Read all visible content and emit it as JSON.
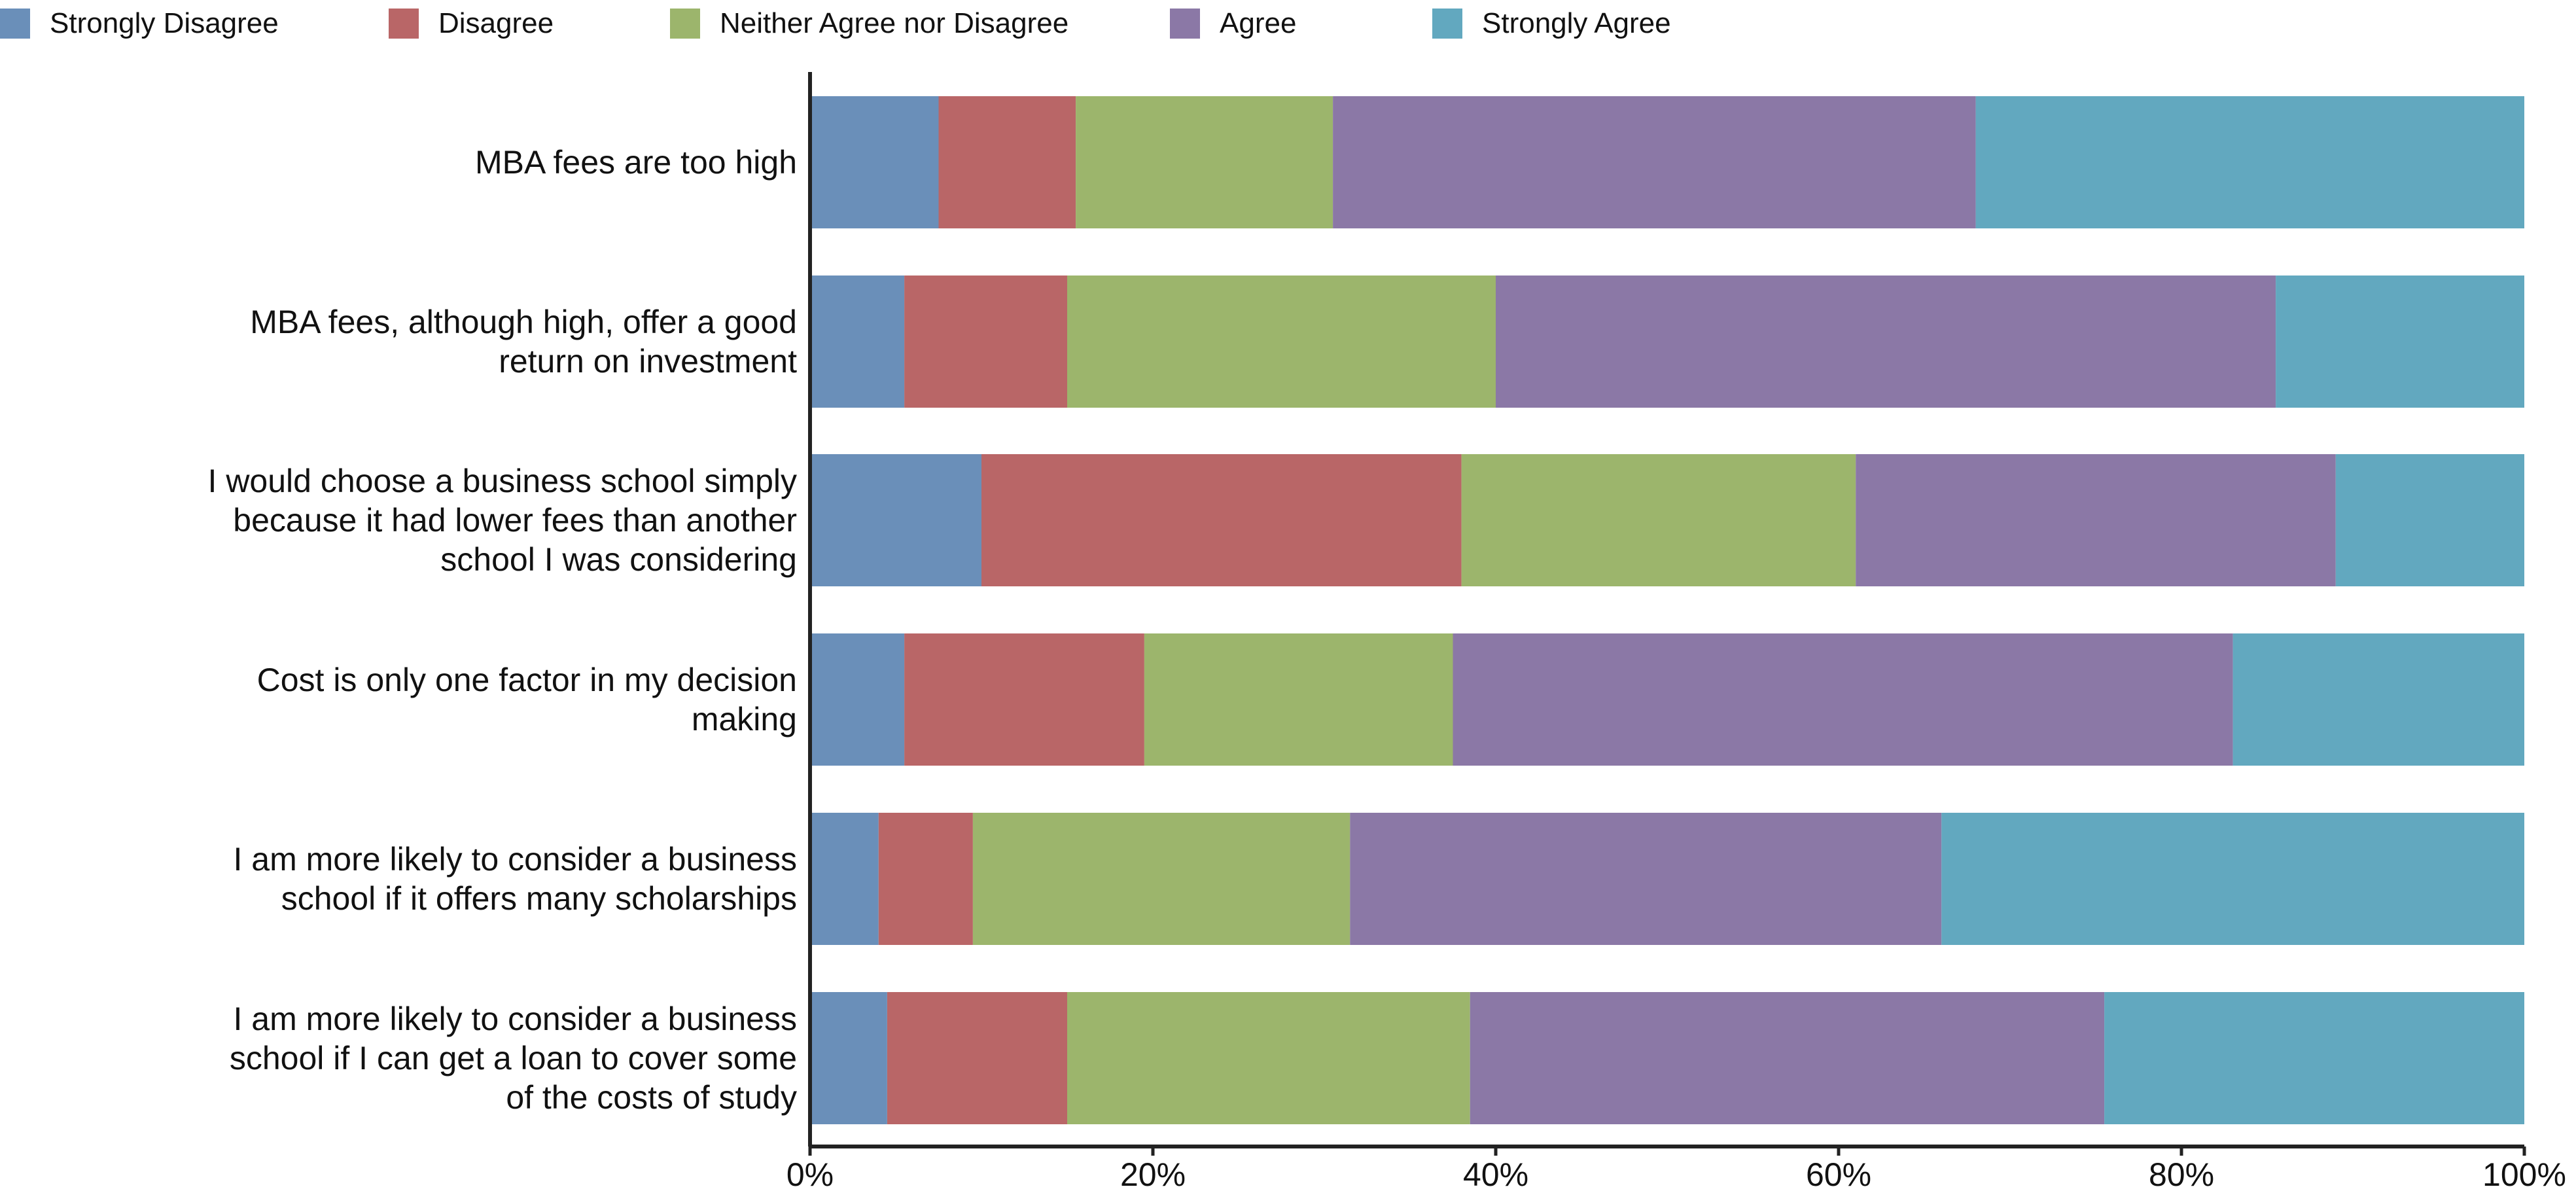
{
  "chart_data": {
    "type": "bar",
    "orientation": "horizontal",
    "stacked": true,
    "percent_scale": true,
    "categories": [
      "MBA fees are too high",
      "MBA fees, although high, offer a good return on investment",
      "I would choose a business school simply because it had lower fees than another school I was considering",
      "Cost is only one factor in my decision making",
      "I am more likely to consider a business school if it offers many scholarships",
      "I am more likely to consider a business school if I can get a loan to cover some of the costs of study"
    ],
    "category_lines": [
      [
        "MBA fees are too high"
      ],
      [
        "MBA fees, although high, offer a good",
        "return on investment"
      ],
      [
        "I would choose a business school simply",
        "because it had lower fees than another",
        "school I was considering"
      ],
      [
        "Cost is only one factor in my decision",
        "making"
      ],
      [
        "I am more likely to consider a business",
        "school if it offers many scholarships"
      ],
      [
        "I am more likely to consider a business",
        "school if I can get a loan to cover some",
        "of the costs of study"
      ]
    ],
    "series": [
      {
        "name": "Strongly Disagree",
        "color": "#6a8fb9",
        "values": [
          7.5,
          5.5,
          10.0,
          5.5,
          4.0,
          4.5
        ]
      },
      {
        "name": "Disagree",
        "color": "#b96667",
        "values": [
          8.0,
          9.5,
          28.0,
          14.0,
          5.5,
          10.5
        ]
      },
      {
        "name": "Neither Agree nor Disagree",
        "color": "#9cb56c",
        "values": [
          15.0,
          25.0,
          23.0,
          18.0,
          22.0,
          23.5
        ]
      },
      {
        "name": "Agree",
        "color": "#8b78a6",
        "values": [
          37.5,
          45.5,
          28.0,
          45.5,
          34.5,
          37.0
        ]
      },
      {
        "name": "Strongly Agree",
        "color": "#62a8bf",
        "values": [
          32.0,
          14.5,
          11.0,
          17.0,
          34.0,
          24.5
        ]
      }
    ],
    "x_ticks": [
      "0%",
      "20%",
      "40%",
      "60%",
      "80%",
      "100%"
    ],
    "xlim": [
      0,
      100
    ],
    "legend_position": "top",
    "grid": false,
    "title": "",
    "xlabel": "",
    "ylabel": ""
  }
}
